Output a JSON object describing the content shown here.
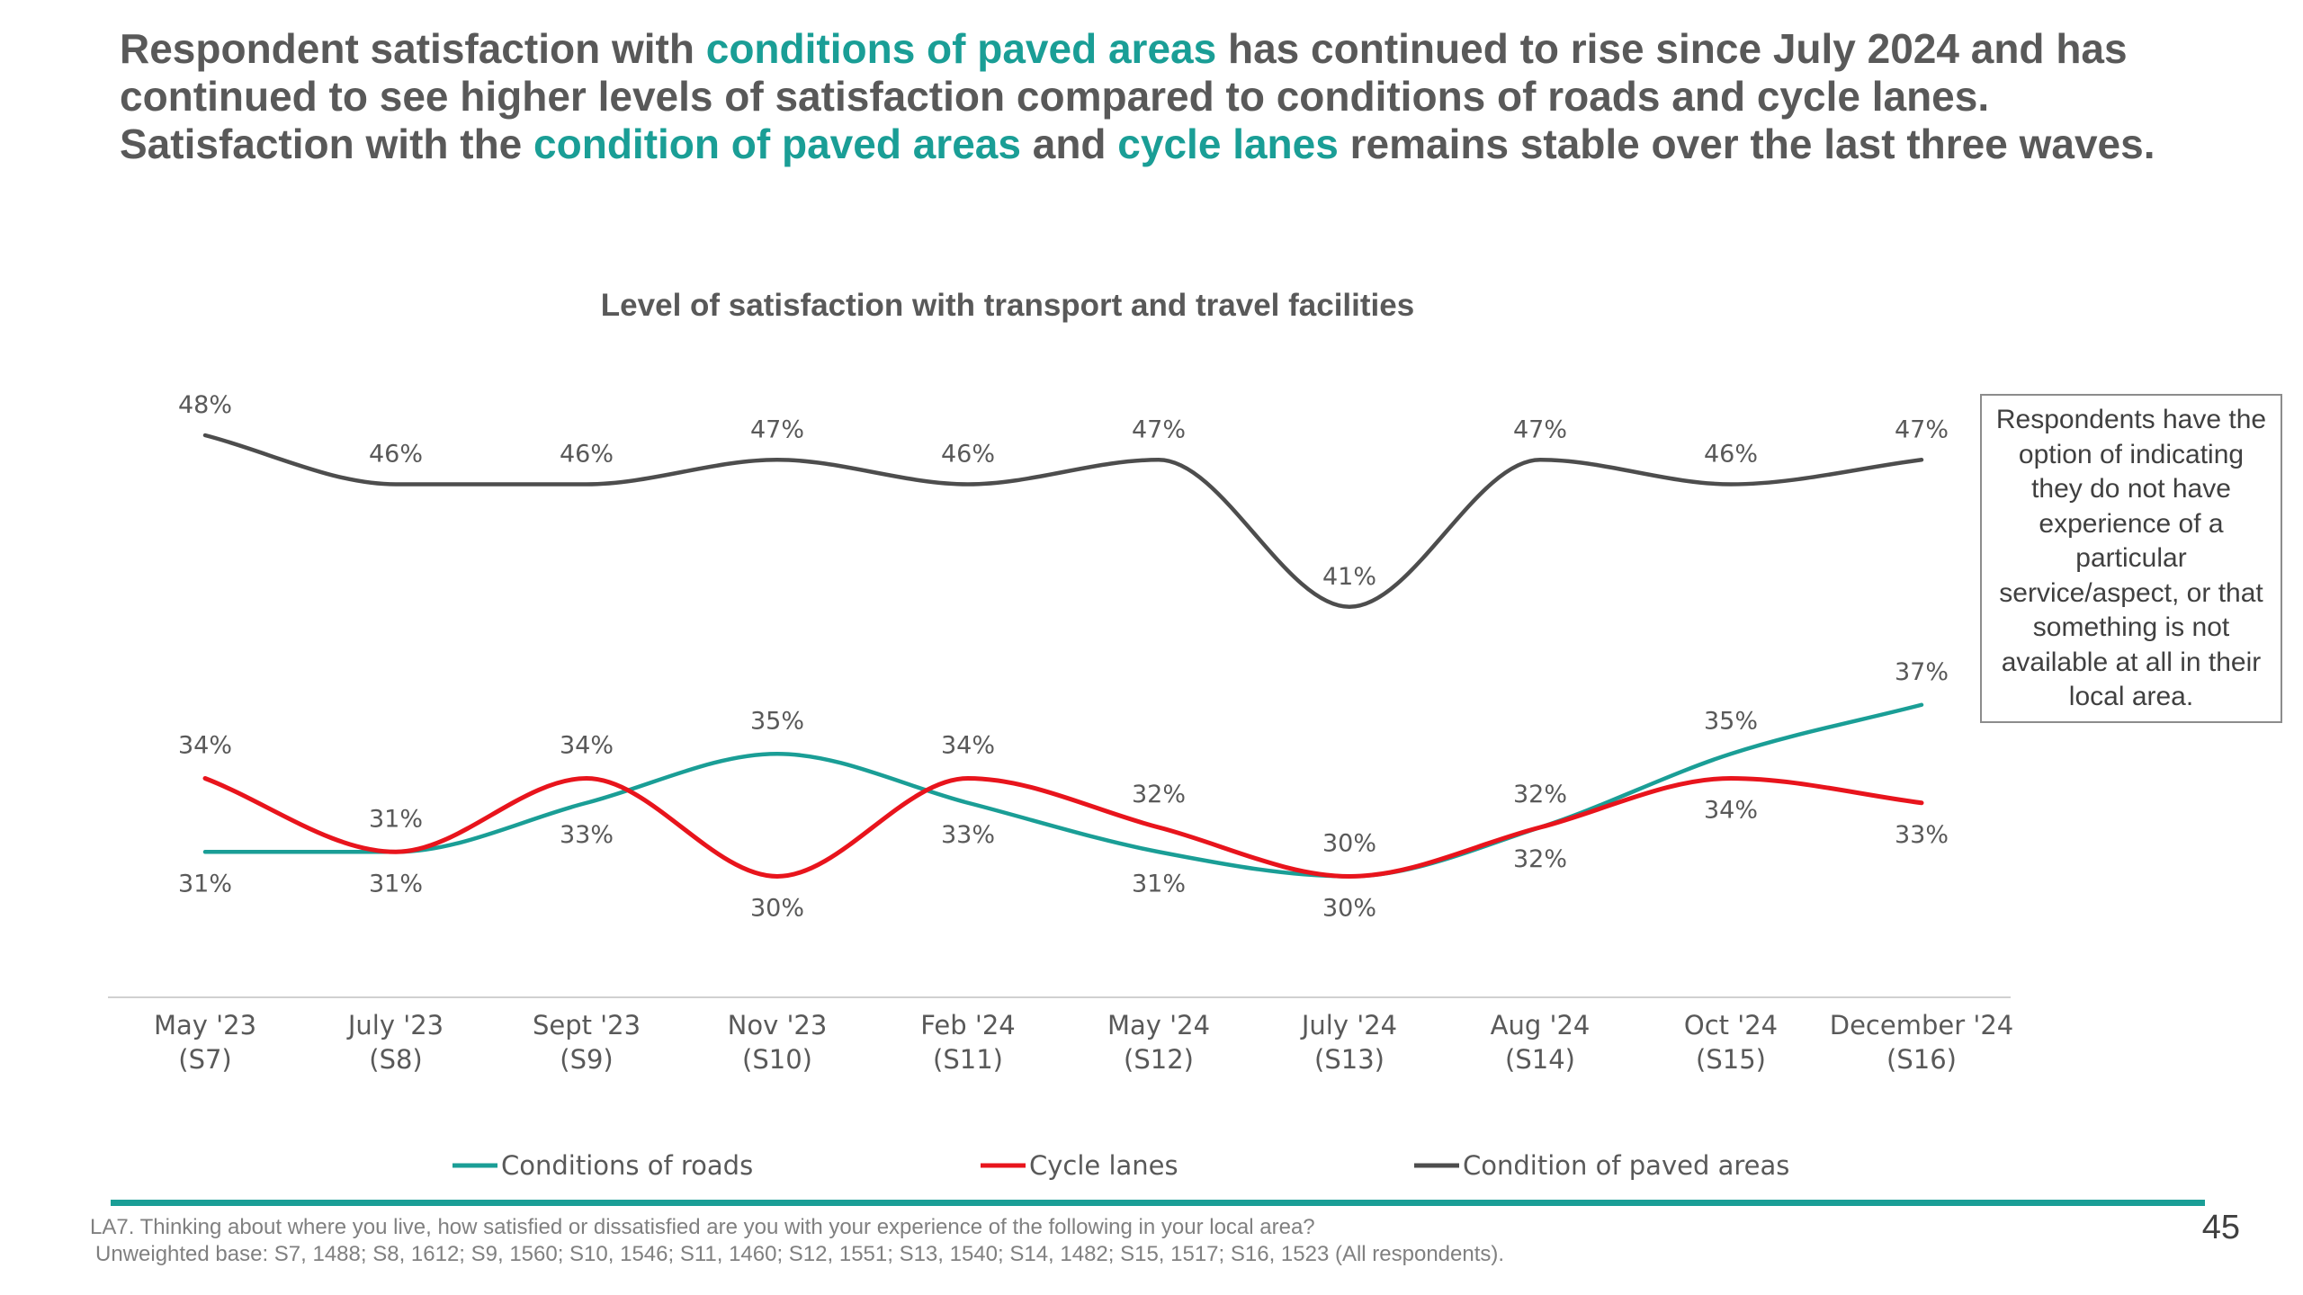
{
  "headline": {
    "p1": "Respondent satisfaction with ",
    "h1": "conditions of paved areas",
    "p2": " has continued to rise since July 2024 and has continued to see higher levels of satisfaction compared to conditions of roads and cycle lanes. Satisfaction with the ",
    "h2": "condition of paved areas",
    "p3": " and ",
    "h3": "cycle lanes",
    "p4": " remains stable over the last three waves."
  },
  "note": "Respondents have the option of indicating they do not have experience of a particular service/aspect, or that something is not available at all in their local area.",
  "footnote": {
    "question": "LA7. Thinking about where you live, how satisfied or dissatisfied are you with your experience of the following in your local area?",
    "base": "Unweighted base: S7, 1488; S8, 1612; S9, 1560; S10, 1546; S11, 1460; S12, 1551; S13, 1540; S14, 1482; S15, 1517; S16, 1523 (All respondents)."
  },
  "page_number": "45",
  "colors": {
    "accent": "#1a9e96",
    "roads": "#1a9e96",
    "cycle": "#e8141c",
    "paved": "#4d4d4d",
    "text": "#595959"
  },
  "chart_data": {
    "type": "line",
    "title": "Level of satisfaction with transport and travel facilities",
    "categories": [
      [
        "May '23",
        "(S7)"
      ],
      [
        "July '23",
        "(S8)"
      ],
      [
        "Sept '23",
        "(S9)"
      ],
      [
        "Nov '23",
        "(S10)"
      ],
      [
        "Feb '24",
        "(S11)"
      ],
      [
        "May '24",
        "(S12)"
      ],
      [
        "July '24",
        "(S13)"
      ],
      [
        "Aug '24",
        "(S14)"
      ],
      [
        "Oct '24",
        "(S15)"
      ],
      [
        "December '24",
        "(S16)"
      ]
    ],
    "unit": "%",
    "ylim": [
      20,
      50
    ],
    "legend_position": "bottom",
    "grid": false,
    "series": [
      {
        "name": "Conditions of roads",
        "color": "#1a9e96",
        "values": [
          31,
          31,
          33,
          35,
          33,
          31,
          30,
          32,
          35,
          37
        ]
      },
      {
        "name": "Cycle lanes",
        "color": "#e8141c",
        "values": [
          34,
          31,
          34,
          30,
          34,
          32,
          30,
          32,
          34,
          33
        ]
      },
      {
        "name": "Condition of paved areas",
        "color": "#4d4d4d",
        "values": [
          48,
          46,
          46,
          47,
          46,
          47,
          41,
          47,
          46,
          47
        ]
      }
    ]
  }
}
